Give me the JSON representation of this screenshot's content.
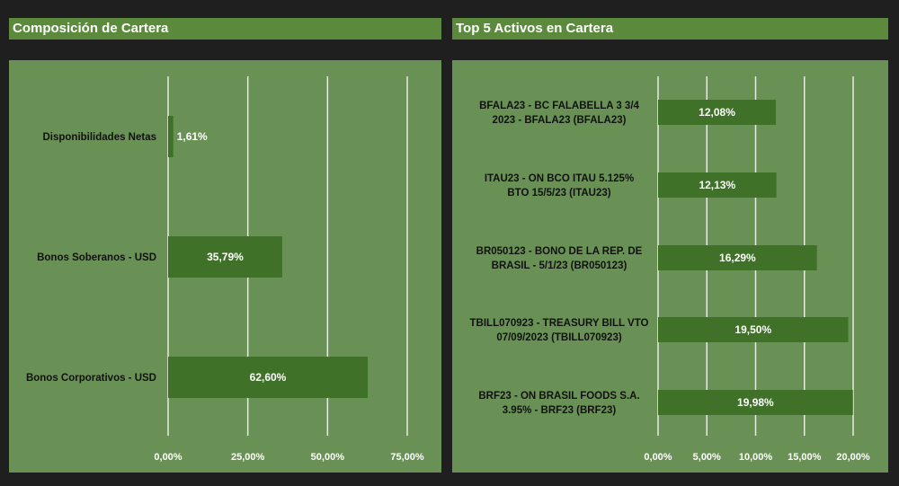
{
  "colors": {
    "background": "#1f1f1f",
    "header": "#5b8a3c",
    "panel": "#6a9155",
    "bar": "#3f7228",
    "grid": "#e6ece2",
    "text": "#ffffff",
    "label": "#111111"
  },
  "left": {
    "title": "Composición de Cartera"
  },
  "right": {
    "title": "Top 5 Activos en Cartera"
  },
  "chart_data": [
    {
      "type": "bar",
      "orientation": "horizontal",
      "title": "Composición de Cartera",
      "categories": [
        "Disponibilidades Netas",
        "Bonos Soberanos - USD",
        "Bonos Corporativos - USD"
      ],
      "values": [
        1.61,
        35.79,
        62.6
      ],
      "value_labels": [
        "1,61%",
        "35,79%",
        "62,60%"
      ],
      "xlim": [
        0,
        75
      ],
      "ticks": [
        0,
        25,
        50,
        75
      ],
      "tick_labels": [
        "0,00%",
        "25,00%",
        "50,00%",
        "75,00%"
      ],
      "grid": true
    },
    {
      "type": "bar",
      "orientation": "horizontal",
      "title": "Top 5 Activos en Cartera",
      "categories": [
        [
          "BFALA23 - BC FALABELLA 3 3/4",
          "2023 - BFALA23 (BFALA23)"
        ],
        [
          "ITAU23 - ON BCO ITAU 5.125%",
          "BTO 15/5/23 (ITAU23)"
        ],
        [
          "BR050123  - BONO DE LA REP. DE",
          "BRASIL - 5/1/23 (BR050123)"
        ],
        [
          "TBILL070923 - TREASURY BILL VTO",
          "07/09/2023 (TBILL070923)"
        ],
        [
          "BRF23 - ON BRASIL FOODS S.A.",
          "3.95% - BRF23 (BRF23)"
        ]
      ],
      "values": [
        12.08,
        12.13,
        16.29,
        19.5,
        19.98
      ],
      "value_labels": [
        "12,08%",
        "12,13%",
        "16,29%",
        "19,50%",
        "19,98%"
      ],
      "xlim": [
        0,
        20
      ],
      "ticks": [
        0,
        5,
        10,
        15,
        20
      ],
      "tick_labels": [
        "0,00%",
        "5,00%",
        "10,00%",
        "15,00%",
        "20,00%"
      ],
      "grid": true
    }
  ]
}
